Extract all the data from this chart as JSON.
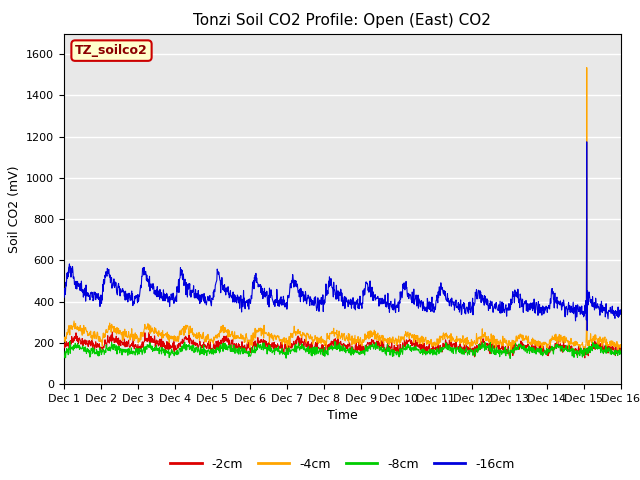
{
  "title": "Tonzi Soil CO2 Profile: Open (East) CO2",
  "xlabel": "Time",
  "ylabel": "Soil CO2 (mV)",
  "ylim": [
    0,
    1700
  ],
  "yticks": [
    0,
    200,
    400,
    600,
    800,
    1000,
    1200,
    1400,
    1600
  ],
  "xlim": [
    0,
    15
  ],
  "xtick_labels": [
    "Dec 1",
    "Dec 2",
    "Dec 3",
    "Dec 4",
    "Dec 5",
    "Dec 6",
    "Dec 7",
    "Dec 8",
    "Dec 9",
    "Dec 10",
    "Dec 11",
    "Dec 12",
    "Dec 13",
    "Dec 14",
    "Dec 15",
    "Dec 16"
  ],
  "legend_label": "TZ_soilco2",
  "legend_bg": "#FFFFCC",
  "legend_edge": "#CC0000",
  "series_labels": [
    "-2cm",
    "-4cm",
    "-8cm",
    "-16cm"
  ],
  "series_colors": [
    "#DD0000",
    "#FFA500",
    "#00CC00",
    "#0000DD"
  ],
  "background_color": "#E8E8E8",
  "grid_color": "#FFFFFF",
  "title_fontsize": 11,
  "axis_fontsize": 9,
  "tick_fontsize": 8
}
